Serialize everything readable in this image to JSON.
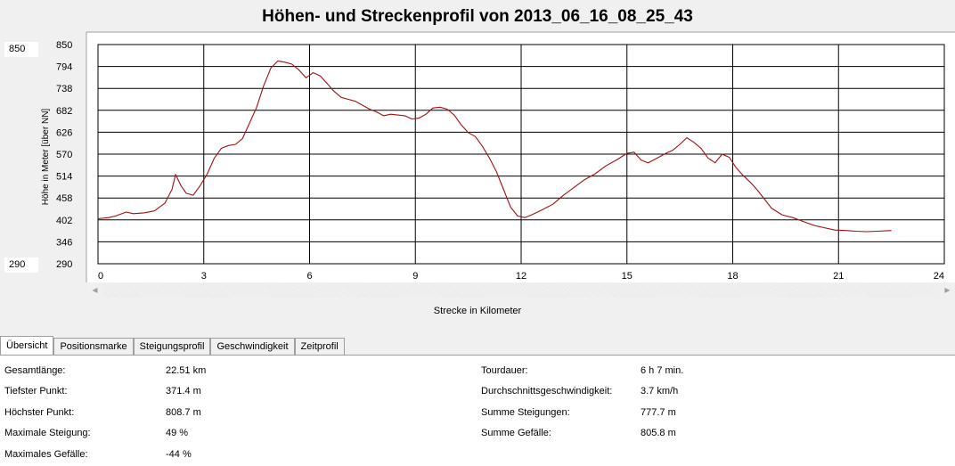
{
  "window": {
    "title": "Höhen- und Streckenprofil von 2013_06_16_08_25_43"
  },
  "range_inputs": {
    "max": "850",
    "min": "290"
  },
  "x_axis_label": "Strecke in Kilometer",
  "tabs": [
    {
      "label": "Übersicht",
      "active": true
    },
    {
      "label": "Positionsmarke",
      "active": false
    },
    {
      "label": "Steigungsprofil",
      "active": false
    },
    {
      "label": "Geschwindigkeit",
      "active": false
    },
    {
      "label": "Zeitprofil",
      "active": false
    }
  ],
  "stats_left": [
    {
      "label": "Gesamtlänge:",
      "value": "22.51 km"
    },
    {
      "label": "Tiefster Punkt:",
      "value": "371.4 m"
    },
    {
      "label": "Höchster Punkt:",
      "value": "808.7 m"
    },
    {
      "label": "Maximale Steigung:",
      "value": "49 %"
    },
    {
      "label": "Maximales Gefälle:",
      "value": "-44 %"
    }
  ],
  "stats_right": [
    {
      "label": "Tourdauer:",
      "value": "6 h 7 min."
    },
    {
      "label": "Durchschnittsgeschwindigkeit:",
      "value": "3.7 km/h"
    },
    {
      "label": "Summe Steigungen:",
      "value": "777.7 m"
    },
    {
      "label": "Summe Gefälle:",
      "value": "805.8 m"
    }
  ],
  "chart_data": {
    "type": "line",
    "title": "Höhen- und Streckenprofil von 2013_06_16_08_25_43",
    "xlabel": "Strecke in Kilometer",
    "ylabel": "Höhe in Meter [über NN]",
    "xlim": [
      0,
      24
    ],
    "ylim": [
      290,
      850
    ],
    "x_ticks": [
      "0",
      "3",
      "6",
      "9",
      "12",
      "15",
      "18",
      "21",
      "24"
    ],
    "y_ticks": [
      "850",
      "794",
      "738",
      "682",
      "626",
      "570",
      "514",
      "458",
      "402",
      "346",
      "290"
    ],
    "grid": true,
    "line_color": "#a01010",
    "series": [
      {
        "x": [
          0,
          0.3,
          0.5,
          0.8,
          1.0,
          1.3,
          1.6,
          1.9,
          2.1,
          2.2,
          2.35,
          2.5,
          2.7,
          2.9,
          3.1,
          3.3,
          3.5,
          3.7,
          3.9,
          4.1,
          4.3,
          4.5,
          4.7,
          4.9,
          5.1,
          5.3,
          5.5,
          5.7,
          5.9,
          6.1,
          6.3,
          6.5,
          6.7,
          6.9,
          7.1,
          7.3,
          7.5,
          7.7,
          7.9,
          8.1,
          8.3,
          8.5,
          8.7,
          8.9,
          9.1,
          9.3,
          9.5,
          9.7,
          9.9,
          10.1,
          10.3,
          10.5,
          10.7,
          10.9,
          11.1,
          11.3,
          11.5,
          11.7,
          11.9,
          12.1,
          12.3,
          12.6,
          12.9,
          13.2,
          13.5,
          13.8,
          14.1,
          14.4,
          14.7,
          15.0,
          15.2,
          15.4,
          15.6,
          15.9,
          16.1,
          16.3,
          16.5,
          16.7,
          16.9,
          17.1,
          17.3,
          17.5,
          17.7,
          17.9,
          18.1,
          18.3,
          18.5,
          18.7,
          18.9,
          19.1,
          19.4,
          19.7,
          20.0,
          20.3,
          20.6,
          20.9,
          21.2,
          21.5,
          21.8,
          22.1,
          22.5
        ],
        "y": [
          405,
          408,
          412,
          422,
          418,
          420,
          425,
          445,
          480,
          518,
          490,
          470,
          465,
          490,
          520,
          560,
          585,
          592,
          595,
          610,
          650,
          690,
          745,
          790,
          808,
          805,
          800,
          785,
          765,
          778,
          770,
          750,
          730,
          715,
          710,
          705,
          695,
          685,
          678,
          668,
          672,
          670,
          668,
          660,
          662,
          672,
          688,
          690,
          685,
          670,
          645,
          625,
          615,
          590,
          560,
          525,
          480,
          435,
          412,
          408,
          415,
          428,
          442,
          465,
          485,
          505,
          520,
          540,
          555,
          572,
          575,
          555,
          548,
          562,
          572,
          580,
          595,
          612,
          600,
          585,
          560,
          548,
          570,
          562,
          535,
          515,
          498,
          478,
          455,
          432,
          415,
          408,
          398,
          388,
          382,
          376,
          375,
          373,
          372,
          373,
          375
        ]
      }
    ]
  }
}
